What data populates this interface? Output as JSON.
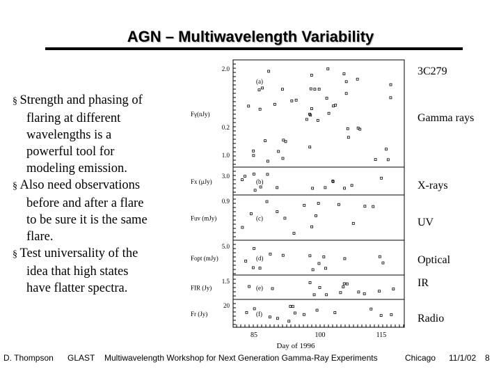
{
  "header": {
    "title": "AGN – Multiwavelength Variability"
  },
  "bullets": [
    "Strength and phasing of flaring at different wavelengths is a powerful tool for modeling emission.",
    "Also need observations before and after a flare to be sure it is the same flare.",
    "Test universality of the idea that high states have flatter spectra."
  ],
  "figure": {
    "source": "3C279",
    "bands": [
      "Gamma rays",
      "X-rays",
      "UV",
      "Optical",
      "IR",
      "Radio"
    ],
    "panels": [
      {
        "axis_label": "Fγ(nJy)",
        "tag": "(a)",
        "ticks": [
          "2.0",
          "0.2"
        ]
      },
      {
        "axis_label": "Fx (μJy)",
        "tag": "(b)",
        "ticks": [
          "3.0",
          "1.0"
        ]
      },
      {
        "axis_label": "Fuv (mJy)",
        "tag": "(c)",
        "ticks": [
          "0.9"
        ]
      },
      {
        "axis_label": "Fopt (mJy)",
        "tag": "(d)",
        "ticks": [
          "5.0"
        ]
      },
      {
        "axis_label": "FIR (Jy)",
        "tag": "(e)",
        "ticks": [
          "1.5"
        ]
      },
      {
        "axis_label": "Fr (Jy)",
        "tag": "(f)",
        "ticks": [
          "20"
        ]
      }
    ],
    "x_ticks": [
      "85",
      "100",
      "115"
    ],
    "x_label": "Day of 1996"
  },
  "footer": [
    "D. Thompson",
    "GLAST",
    "Multiwavelength Workshop for Next Generation Gamma-Ray Experiments",
    "Chicago",
    "11/1/02",
    "8"
  ]
}
